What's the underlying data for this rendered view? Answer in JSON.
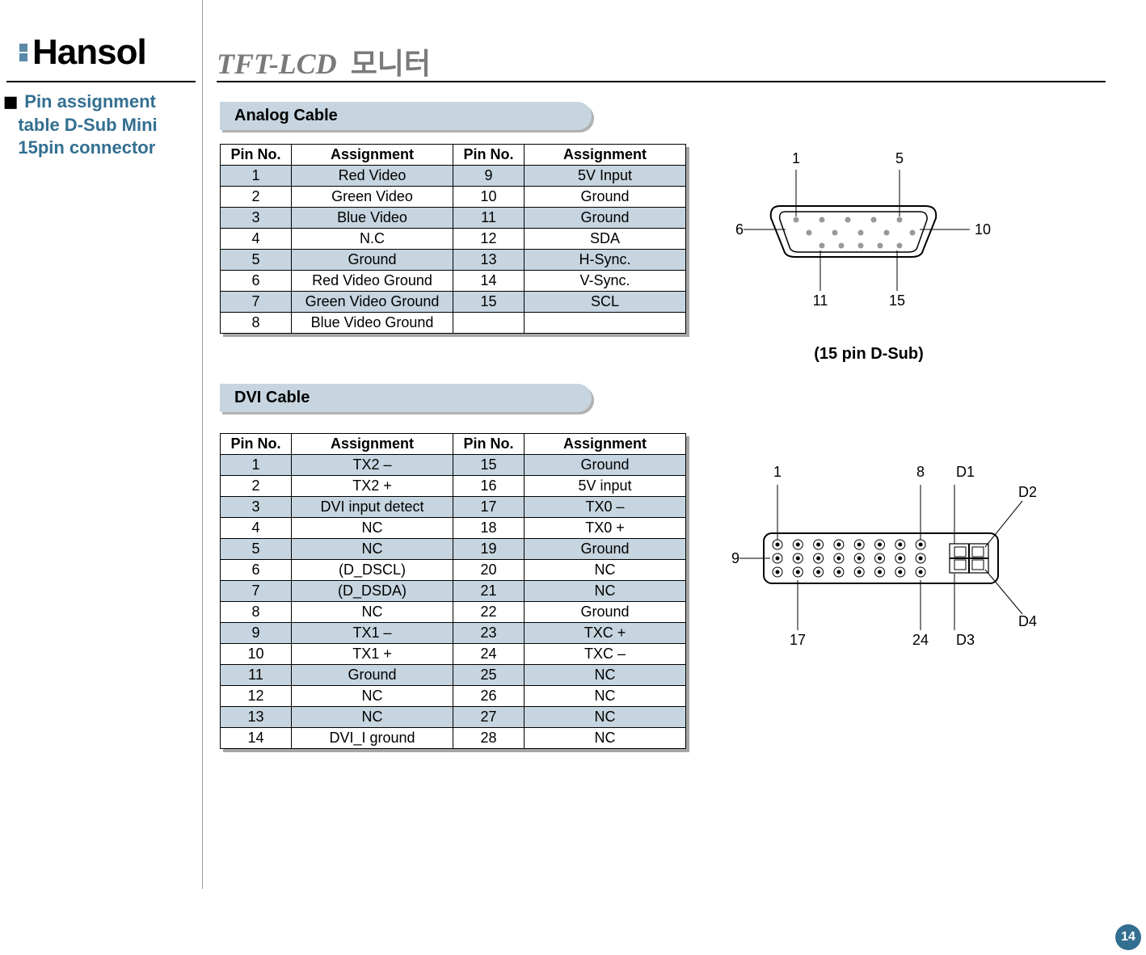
{
  "logo_text": "Hansol",
  "page_title_italic": "TFT-LCD",
  "page_title_korean": "모니터",
  "sidebar_heading_line1": "Pin assignment",
  "sidebar_heading_line2": "table D-Sub Mini",
  "sidebar_heading_line3": "15pin connector",
  "section1_title": "Analog Cable",
  "section2_title": "DVI Cable",
  "table_headers": {
    "pin": "Pin No.",
    "assign": "Assignment"
  },
  "analog_rows": [
    {
      "a": "1",
      "b": "Red Video",
      "c": "9",
      "d": "5V Input"
    },
    {
      "a": "2",
      "b": "Green Video",
      "c": "10",
      "d": "Ground"
    },
    {
      "a": "3",
      "b": "Blue Video",
      "c": "11",
      "d": "Ground"
    },
    {
      "a": "4",
      "b": "N.C",
      "c": "12",
      "d": "SDA"
    },
    {
      "a": "5",
      "b": "Ground",
      "c": "13",
      "d": "H-Sync."
    },
    {
      "a": "6",
      "b": "Red Video Ground",
      "c": "14",
      "d": "V-Sync."
    },
    {
      "a": "7",
      "b": "Green Video Ground",
      "c": "15",
      "d": "SCL"
    },
    {
      "a": "8",
      "b": "Blue Video Ground",
      "c": "",
      "d": ""
    }
  ],
  "dvi_rows": [
    {
      "a": "1",
      "b": "TX2 –",
      "c": "15",
      "d": "Ground"
    },
    {
      "a": "2",
      "b": "TX2 +",
      "c": "16",
      "d": "5V input"
    },
    {
      "a": "3",
      "b": "DVI input detect",
      "c": "17",
      "d": "TX0 –"
    },
    {
      "a": "4",
      "b": "NC",
      "c": "18",
      "d": "TX0 +"
    },
    {
      "a": "5",
      "b": "NC",
      "c": "19",
      "d": "Ground"
    },
    {
      "a": "6",
      "b": "(D_DSCL)",
      "c": "20",
      "d": "NC"
    },
    {
      "a": "7",
      "b": "(D_DSDA)",
      "c": "21",
      "d": "NC"
    },
    {
      "a": "8",
      "b": "NC",
      "c": "22",
      "d": "Ground"
    },
    {
      "a": "9",
      "b": "TX1 –",
      "c": "23",
      "d": "TXC +"
    },
    {
      "a": "10",
      "b": "TX1 +",
      "c": "24",
      "d": "TXC –"
    },
    {
      "a": "11",
      "b": "Ground",
      "c": "25",
      "d": "NC"
    },
    {
      "a": "12",
      "b": "NC",
      "c": "26",
      "d": "NC"
    },
    {
      "a": "13",
      "b": "NC",
      "c": "27",
      "d": "NC"
    },
    {
      "a": "14",
      "b": "DVI_I ground",
      "c": "28",
      "d": "NC"
    }
  ],
  "dsub": {
    "label": "(15 pin D-Sub)",
    "n1": "1",
    "n5": "5",
    "n6": "6",
    "n10": "10",
    "n11": "11",
    "n15": "15"
  },
  "dvi": {
    "n1": "1",
    "n8": "8",
    "n9": "9",
    "n17": "17",
    "n24": "24",
    "d1": "D1",
    "d2": "D2",
    "d3": "D3",
    "d4": "D4"
  },
  "page_number": "14",
  "colors": {
    "header_blue": "#336f91",
    "row_fill": "#c6d5df",
    "logo_mark": "#5a8aa6",
    "title_gray": "#7a7a7a"
  }
}
